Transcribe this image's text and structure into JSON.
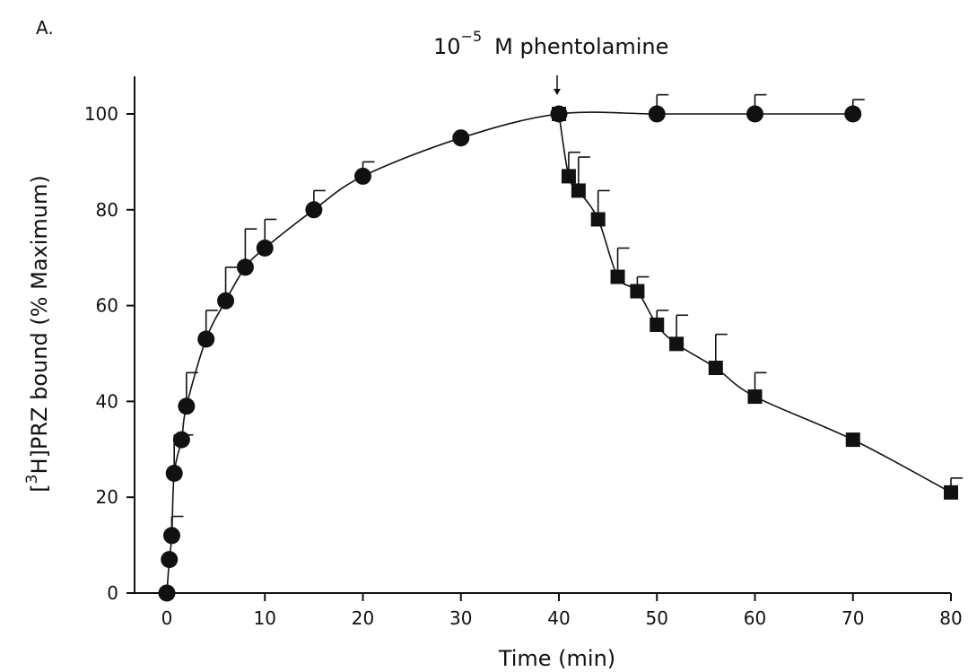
{
  "chart_data": {
    "type": "scatter",
    "panel_label": "A.",
    "xlabel": "Time (min)",
    "ylabel": {
      "prefix": "[",
      "superscript": "3",
      "rest": "H]PRZ bound (% Maximum)"
    },
    "xlim": [
      0,
      80
    ],
    "ylim": [
      0,
      105
    ],
    "xticks": [
      0,
      10,
      20,
      30,
      40,
      50,
      60,
      70,
      80
    ],
    "yticks": [
      0,
      20,
      40,
      60,
      80,
      100
    ],
    "grid": false,
    "legend": "none",
    "annotation": {
      "base": "10",
      "exponent": "−5",
      "text": "M phentolamine",
      "arrow_x": 40
    },
    "series": [
      {
        "marker": "circle",
        "x": [
          0,
          0.25,
          0.5,
          0.75,
          1.5,
          2,
          4,
          6,
          8,
          10,
          15,
          20,
          30,
          40,
          50,
          60,
          70
        ],
        "y": [
          0,
          7,
          12,
          25,
          32,
          39,
          53,
          61,
          68,
          72,
          80,
          87,
          95,
          100,
          100,
          100,
          100
        ],
        "err": [
          0,
          0,
          4,
          8,
          1,
          7,
          6,
          7,
          8,
          6,
          4,
          3,
          0,
          0,
          4,
          4,
          3
        ]
      },
      {
        "marker": "square",
        "x": [
          40,
          41,
          42,
          44,
          46,
          48,
          50,
          52,
          56,
          60,
          70,
          80
        ],
        "y": [
          100,
          87,
          84,
          78,
          66,
          63,
          56,
          52,
          47,
          41,
          32,
          21
        ],
        "err": [
          0,
          5,
          7,
          6,
          6,
          3,
          3,
          6,
          7,
          5,
          0,
          3
        ]
      }
    ]
  }
}
